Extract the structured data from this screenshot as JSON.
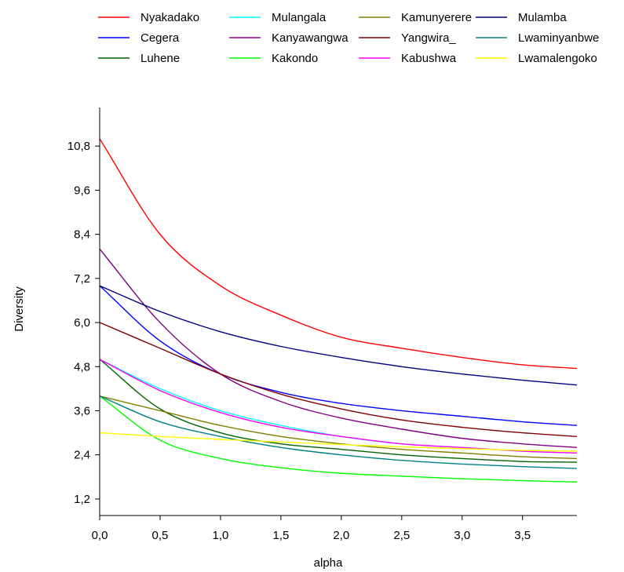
{
  "chart_data": {
    "type": "line",
    "title": "",
    "xlabel": "alpha",
    "ylabel": "Diversity",
    "xlim": [
      0,
      3.95
    ],
    "ylim": [
      0.75,
      11.85
    ],
    "grid": false,
    "legend_position": "top",
    "x_ticks": [
      "0,0",
      "0,5",
      "1,0",
      "1,5",
      "2,0",
      "2,5",
      "3,0",
      "3,5"
    ],
    "x_tick_values": [
      0,
      0.5,
      1.0,
      1.5,
      2.0,
      2.5,
      3.0,
      3.5
    ],
    "y_ticks": [
      "1,2",
      "2,4",
      "3,6",
      "4,8",
      "6,0",
      "7,2",
      "8,4",
      "9,6",
      "10,8"
    ],
    "y_tick_values": [
      1.2,
      2.4,
      3.6,
      4.8,
      6.0,
      7.2,
      8.4,
      9.6,
      10.8
    ],
    "x": [
      0,
      0.5,
      1.0,
      1.5,
      2.0,
      2.5,
      3.0,
      3.5,
      3.95
    ],
    "series": [
      {
        "name": "Nyakadako",
        "color": "#ff0000",
        "values": [
          11.0,
          8.4,
          7.0,
          6.2,
          5.6,
          5.3,
          5.05,
          4.85,
          4.75
        ]
      },
      {
        "name": "Cegera",
        "color": "#0000ff",
        "values": [
          7.0,
          5.5,
          4.6,
          4.1,
          3.8,
          3.6,
          3.45,
          3.3,
          3.2
        ]
      },
      {
        "name": "Luhene",
        "color": "#006400",
        "values": [
          5.0,
          3.65,
          3.0,
          2.7,
          2.55,
          2.4,
          2.3,
          2.22,
          2.2
        ]
      },
      {
        "name": "Mulangala",
        "color": "#00ffff",
        "values": [
          5.0,
          4.2,
          3.6,
          3.2,
          2.9,
          2.7,
          2.6,
          2.5,
          2.45
        ]
      },
      {
        "name": "Kanyawangwa",
        "color": "#800080",
        "values": [
          8.0,
          6.0,
          4.6,
          3.85,
          3.4,
          3.1,
          2.85,
          2.7,
          2.6
        ]
      },
      {
        "name": "Kakondo",
        "color": "#00ff00",
        "values": [
          4.0,
          2.8,
          2.3,
          2.05,
          1.9,
          1.82,
          1.75,
          1.7,
          1.66
        ]
      },
      {
        "name": "Kamunyerere",
        "color": "#808000",
        "values": [
          4.0,
          3.6,
          3.2,
          2.9,
          2.7,
          2.55,
          2.45,
          2.35,
          2.3
        ]
      },
      {
        "name": "Yangwira_",
        "color": "#800000",
        "values": [
          6.0,
          5.3,
          4.6,
          4.05,
          3.65,
          3.35,
          3.15,
          3.0,
          2.9
        ]
      },
      {
        "name": "Kabushwa",
        "color": "#ff00ff",
        "values": [
          5.0,
          4.15,
          3.55,
          3.15,
          2.9,
          2.7,
          2.6,
          2.5,
          2.45
        ]
      },
      {
        "name": "Mulamba",
        "color": "#000080",
        "values": [
          7.0,
          6.3,
          5.75,
          5.35,
          5.05,
          4.8,
          4.6,
          4.43,
          4.3
        ]
      },
      {
        "name": "Lwaminyanbwe",
        "color": "#008080",
        "values": [
          4.0,
          3.3,
          2.9,
          2.6,
          2.4,
          2.25,
          2.15,
          2.08,
          2.03
        ]
      },
      {
        "name": "Lwamalengoko",
        "color": "#ffff00",
        "values": [
          3.0,
          2.9,
          2.82,
          2.75,
          2.68,
          2.62,
          2.57,
          2.52,
          2.5
        ]
      }
    ]
  }
}
